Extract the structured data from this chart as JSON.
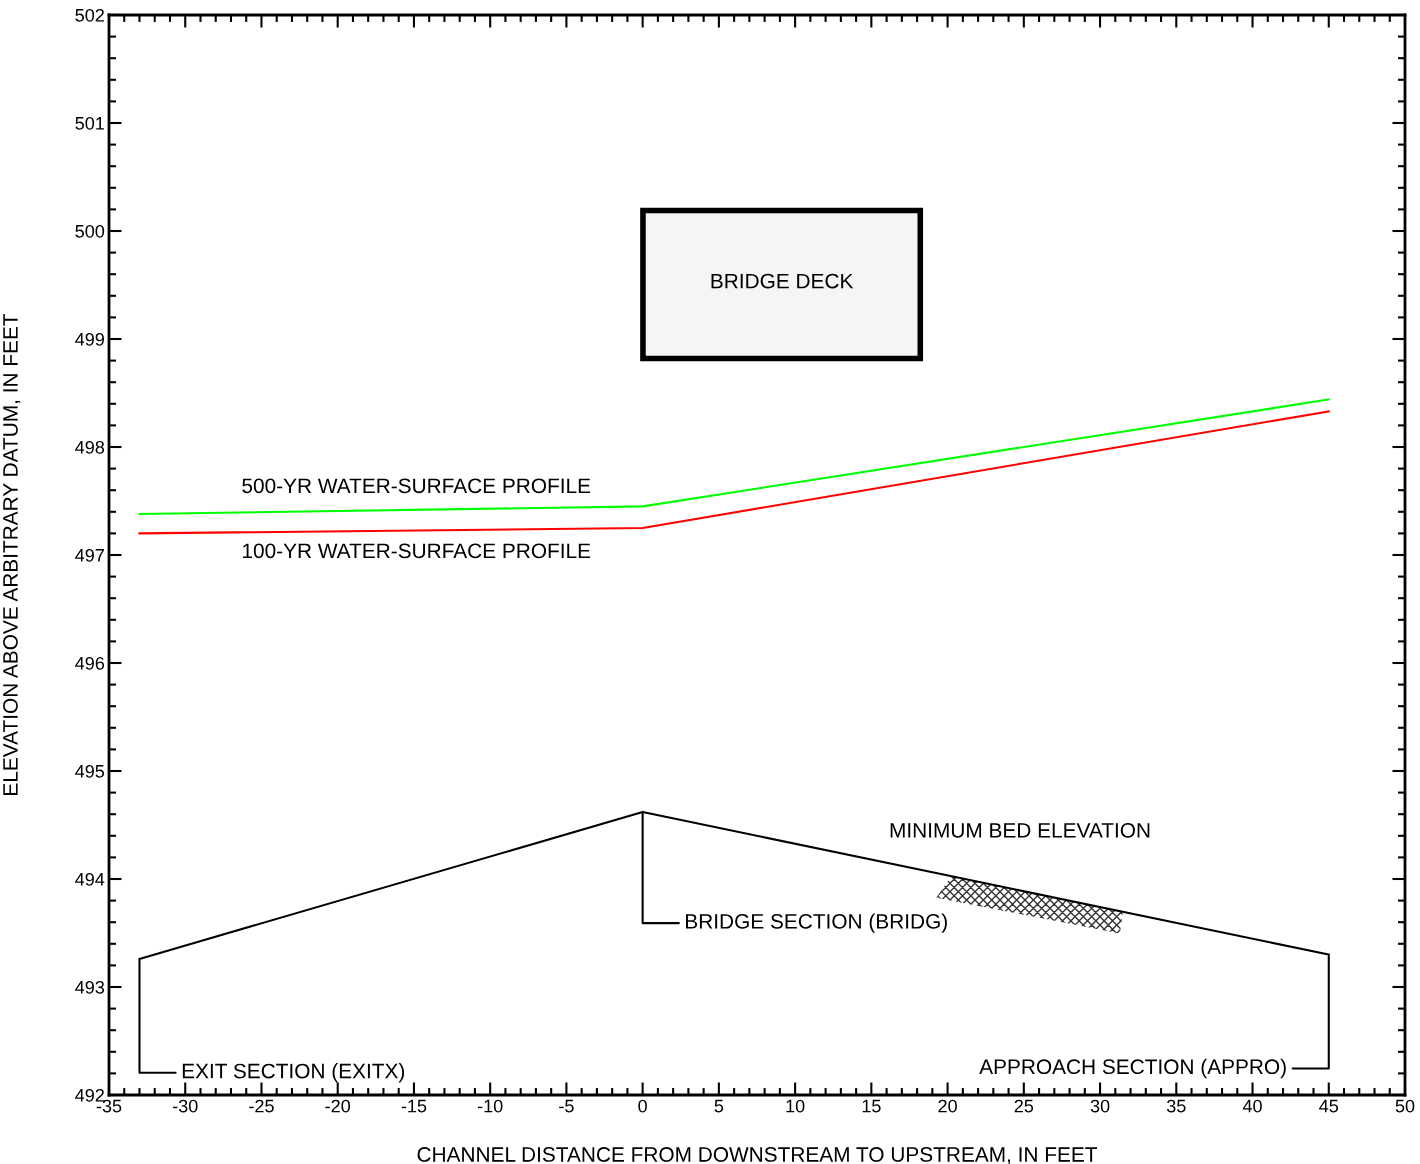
{
  "chart_data": {
    "type": "line",
    "xlabel": "CHANNEL DISTANCE FROM DOWNSTREAM TO UPSTREAM, IN FEET",
    "ylabel": "ELEVATION ABOVE ARBITRARY DATUM, IN FEET",
    "xlim": [
      -35,
      50
    ],
    "xticks": [
      -35,
      -30,
      -25,
      -20,
      -15,
      -10,
      -5,
      0,
      5,
      10,
      15,
      20,
      25,
      30,
      35,
      40,
      45,
      50
    ],
    "ylim": [
      492,
      502
    ],
    "yticks": [
      492,
      493,
      494,
      495,
      496,
      497,
      498,
      499,
      500,
      501,
      502
    ],
    "grid": false,
    "legend": false,
    "marker": "none",
    "line_style": "solid",
    "series": [
      {
        "name": "500-YR WATER-SURFACE PROFILE",
        "color": "#00ff00",
        "x": [
          -33,
          0,
          45
        ],
        "values": [
          497.38,
          497.45,
          498.44
        ]
      },
      {
        "name": "100-YR WATER-SURFACE PROFILE",
        "color": "#ff0000",
        "x": [
          -33,
          0,
          45
        ],
        "values": [
          497.2,
          497.25,
          498.33
        ]
      },
      {
        "name": "MINIMUM BED ELEVATION",
        "color": "#000000",
        "x": [
          -33,
          0,
          45
        ],
        "values": [
          493.26,
          494.62,
          493.3
        ]
      }
    ],
    "annotations": [
      "BRIDGE DECK",
      {
        "text": "EXIT SECTION (EXITX)",
        "x": -33,
        "y": 493.26
      },
      {
        "text": "BRIDGE SECTION (BRIDG)",
        "x": 0,
        "y": 494.62
      },
      {
        "text": "APPROACH SECTION (APPRO)",
        "x": 45,
        "y": 493.3
      }
    ]
  }
}
